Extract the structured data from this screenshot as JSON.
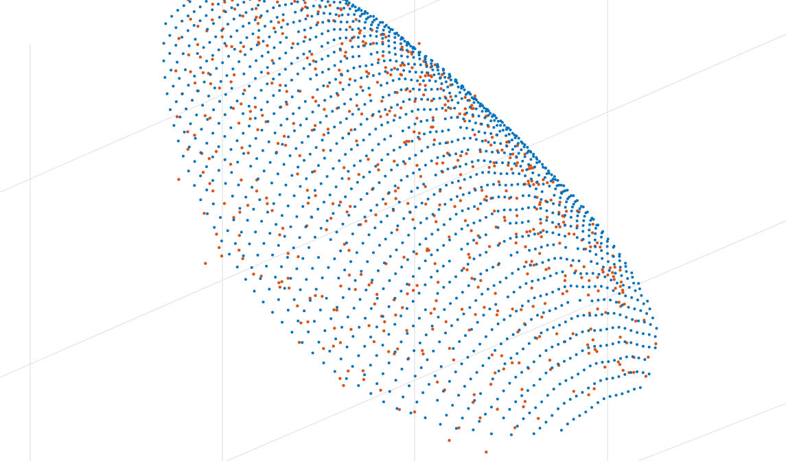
{
  "chart_data": {
    "type": "scatter",
    "projection": "3d",
    "title": "",
    "xlabel": "",
    "ylabel": "",
    "zlabel": "",
    "grid": true,
    "legend": "none",
    "axis_ticks_visible": false,
    "series": [
      {
        "color": "#0072BD",
        "marker": "dot",
        "structure": "regular-grid",
        "point_count_estimate": 6000
      },
      {
        "color": "#D95319",
        "marker": "dot",
        "structure": "noisy-cloud",
        "point_count_estimate": 3500
      }
    ]
  }
}
